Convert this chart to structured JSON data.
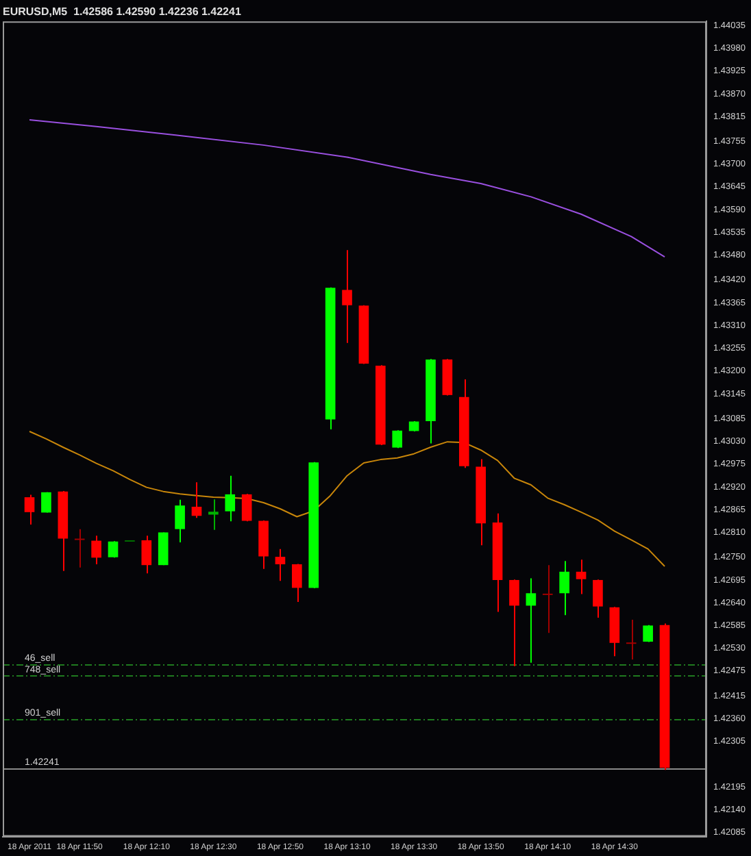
{
  "chart_data": {
    "type": "candlestick",
    "title": "EURUSD,M5  1.42586 1.42590 1.42236 1.42241",
    "categories": [
      "18 Apr 2011",
      null,
      null,
      "18 Apr 11:50",
      null,
      null,
      null,
      "18 Apr 12:10",
      null,
      null,
      null,
      "18 Apr 12:30",
      null,
      null,
      null,
      "18 Apr 12:50",
      null,
      null,
      null,
      "18 Apr 13:10",
      null,
      null,
      null,
      "18 Apr 13:30",
      null,
      null,
      null,
      "18 Apr 13:50",
      null,
      null,
      null,
      "18 Apr 14:10",
      null,
      null,
      null,
      "18 Apr 14:30",
      null,
      null,
      null
    ],
    "ohlc": [
      [
        1.42895,
        1.42901,
        1.42829,
        1.42859
      ],
      [
        1.42858,
        1.42907,
        1.42858,
        1.42907
      ],
      [
        1.42909,
        1.4291,
        1.42717,
        1.42795
      ],
      [
        1.42795,
        1.42818,
        1.42725,
        1.42792
      ],
      [
        1.4279,
        1.42802,
        1.42733,
        1.42749
      ],
      [
        1.4275,
        1.42789,
        1.42749,
        1.42788
      ],
      [
        1.42789,
        1.42791,
        1.42789,
        1.42791
      ],
      [
        1.42791,
        1.42802,
        1.42711,
        1.42731
      ],
      [
        1.42731,
        1.4281,
        1.42731,
        1.4281
      ],
      [
        1.42818,
        1.42889,
        1.42786,
        1.42875
      ],
      [
        1.42872,
        1.42931,
        1.42845,
        1.4285
      ],
      [
        1.42853,
        1.4289,
        1.42816,
        1.4286
      ],
      [
        1.42861,
        1.42947,
        1.42837,
        1.42902
      ],
      [
        1.42902,
        1.42903,
        1.42837,
        1.42838
      ],
      [
        1.42838,
        1.42839,
        1.42722,
        1.42752
      ],
      [
        1.42751,
        1.4277,
        1.42693,
        1.42733
      ],
      [
        1.42733,
        1.42734,
        1.42642,
        1.42676
      ],
      [
        1.42676,
        1.4298,
        1.42675,
        1.42979
      ],
      [
        1.43083,
        1.43402,
        1.43059,
        1.43401
      ],
      [
        1.43396,
        1.43492,
        1.43268,
        1.43359
      ],
      [
        1.43358,
        1.43359,
        1.43217,
        1.43218
      ],
      [
        1.43213,
        1.43214,
        1.43021,
        1.43022
      ],
      [
        1.43015,
        1.43057,
        1.43014,
        1.43056
      ],
      [
        1.43055,
        1.43079,
        1.43054,
        1.43078
      ],
      [
        1.43079,
        1.43229,
        1.43025,
        1.43228
      ],
      [
        1.43228,
        1.43229,
        1.43141,
        1.43142
      ],
      [
        1.43137,
        1.4318,
        1.42966,
        1.4297
      ],
      [
        1.42969,
        1.42987,
        1.42779,
        1.42832
      ],
      [
        1.42834,
        1.42856,
        1.42618,
        1.42695
      ],
      [
        1.42695,
        1.42696,
        1.42487,
        1.42633
      ],
      [
        1.42633,
        1.42699,
        1.42495,
        1.42663
      ],
      [
        1.42662,
        1.42731,
        1.42567,
        1.4266
      ],
      [
        1.42663,
        1.42741,
        1.4261,
        1.42715
      ],
      [
        1.42715,
        1.42744,
        1.42661,
        1.42697
      ],
      [
        1.42695,
        1.42696,
        1.42604,
        1.42631
      ],
      [
        1.42629,
        1.4263,
        1.42511,
        1.42543
      ],
      [
        1.42544,
        1.42599,
        1.42503,
        1.42543
      ],
      [
        1.42546,
        1.42586,
        1.42545,
        1.42585
      ],
      [
        1.42586,
        1.4259,
        1.42236,
        1.42241
      ]
    ],
    "colors": [
      "#ff0000",
      "#00ff00",
      "#ff0000",
      "#a00000",
      "#ff0000",
      "#00ff00",
      "#007000",
      "#ff0000",
      "#00ff00",
      "#00ff00",
      "#ff0000",
      "#00b000",
      "#00ff00",
      "#ff0000",
      "#ff0000",
      "#ff0000",
      "#ff0000",
      "#00ff00",
      "#00ff00",
      "#ff0000",
      "#ff0000",
      "#ff0000",
      "#00ff00",
      "#00ff00",
      "#00ff00",
      "#ff0000",
      "#ff0000",
      "#ff0000",
      "#ff0000",
      "#ff0000",
      "#00ff00",
      "#a00000",
      "#00ff00",
      "#ff0000",
      "#ff0000",
      "#ff0000",
      "#a00000",
      "#00ff00",
      "#ff0000"
    ],
    "series": [
      {
        "type": "line",
        "color": "#c8860a",
        "values": [
          1.43054,
          1.43036,
          1.43016,
          1.42997,
          1.42977,
          1.42959,
          1.42938,
          1.42919,
          1.42909,
          1.42903,
          1.42899,
          1.42895,
          1.42894,
          1.42892,
          1.42882,
          1.42867,
          1.42848,
          1.42862,
          1.42899,
          1.42947,
          1.42978,
          1.42986,
          1.4299,
          1.43,
          1.43016,
          1.43029,
          1.43027,
          1.43009,
          1.42984,
          1.42941,
          1.42925,
          1.42893,
          1.42877,
          1.42859,
          1.4284,
          1.42813,
          1.42792,
          1.4277,
          1.42728
        ]
      },
      {
        "type": "line",
        "color": "#9a50e0",
        "values": [
          1.43807,
          null,
          null,
          null,
          1.43791,
          null,
          null,
          null,
          null,
          1.43769,
          null,
          null,
          null,
          null,
          1.43746,
          null,
          null,
          null,
          null,
          1.43717,
          null,
          null,
          null,
          null,
          1.43675,
          null,
          null,
          1.43653,
          null,
          null,
          1.43621,
          null,
          null,
          1.43579,
          null,
          null,
          1.43525,
          null,
          1.43476
        ]
      }
    ],
    "ylim": [
      1.42075,
      1.44045
    ],
    "yticks": [
      1.44035,
      {
        "value": 1.4398,
        "label": "1.43980"
      },
      1.43925,
      {
        "value": 1.4387,
        "label": "1.43870"
      },
      1.43815,
      1.43755,
      {
        "value": 1.437,
        "label": "1.43700"
      },
      1.43645,
      {
        "value": 1.4359,
        "label": "1.43590"
      },
      1.43535,
      {
        "value": 1.4348,
        "label": "1.43480"
      },
      {
        "value": 1.4342,
        "label": "1.43420"
      },
      1.43365,
      {
        "value": 1.4331,
        "label": "1.43310"
      },
      1.43255,
      {
        "value": 1.432,
        "label": "1.43200"
      },
      1.43145,
      1.43085,
      {
        "value": 1.4303,
        "label": "1.43030"
      },
      1.42975,
      {
        "value": 1.4292,
        "label": "1.42920"
      },
      1.42865,
      {
        "value": 1.4281,
        "label": "1.42810"
      },
      {
        "value": 1.4275,
        "label": "1.42750"
      },
      1.42695,
      {
        "value": 1.4264,
        "label": "1.42640"
      },
      1.42585,
      {
        "value": 1.4253,
        "label": "1.42530"
      },
      1.42475,
      1.42415,
      {
        "value": 1.4236,
        "label": "1.42360"
      },
      1.42305,
      1.42195,
      {
        "value": 1.4214,
        "label": "1.42140"
      },
      1.42085
    ],
    "ref_lines": [
      {
        "axis": "y",
        "value": 1.42492,
        "label": "46_sell",
        "color": "#1f7a1f",
        "line_style": "dashed"
      },
      {
        "axis": "y",
        "value": 1.42465,
        "label": "748_sell",
        "color": "#1f7a1f",
        "line_style": "dashed"
      },
      {
        "axis": "y",
        "value": 1.4236,
        "label": "901_sell",
        "color": "#1f7a1f",
        "line_style": "dashed"
      },
      {
        "axis": "y",
        "value": 1.42241,
        "label": "1.42241",
        "color": "#8a8a8a",
        "line_style": "solid"
      }
    ],
    "grid": false,
    "legend": false
  }
}
